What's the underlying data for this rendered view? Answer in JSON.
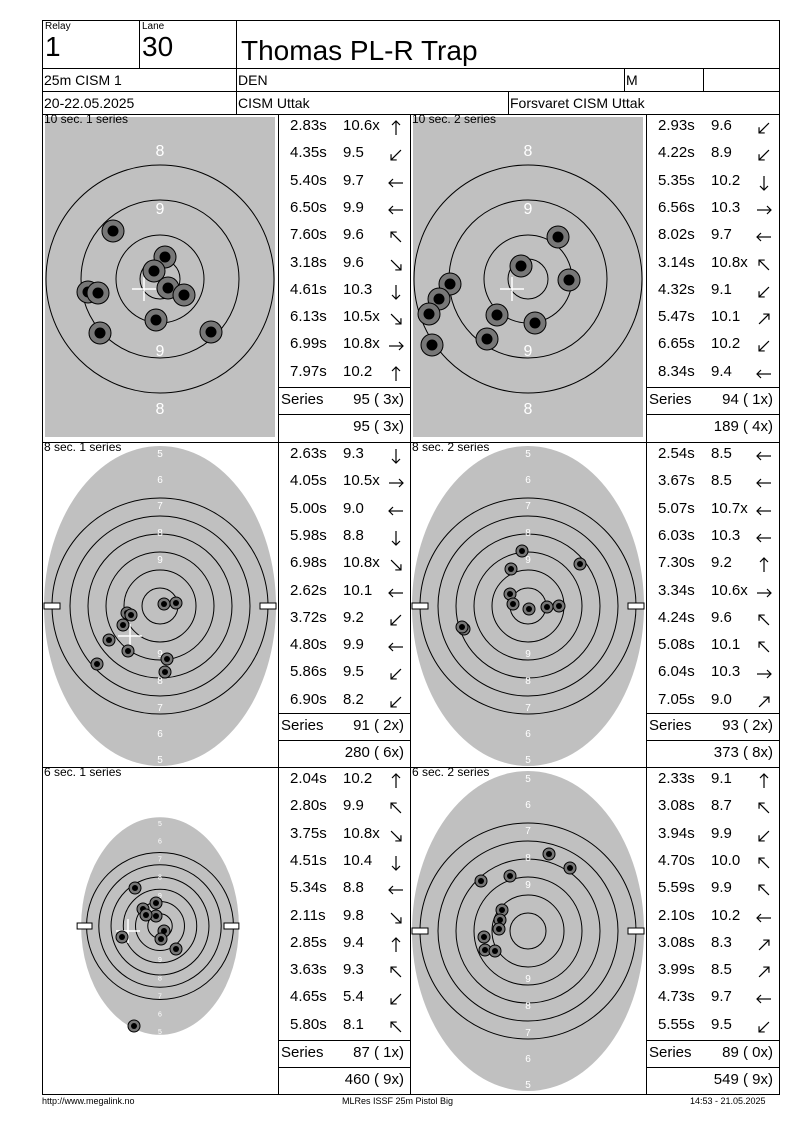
{
  "header": {
    "relay_label": "Relay",
    "relay_value": "1",
    "lane_label": "Lane",
    "lane_value": "30",
    "shooter_name": "Thomas PL-R Trap",
    "event": "25m CISM 1",
    "nation": "DEN",
    "gender": "M",
    "dates": "20-22.05.2025",
    "competition": "CISM Uttak",
    "club": "Forsvaret CISM Uttak"
  },
  "series": [
    {
      "title": "10 sec. 1 series",
      "target_type": "precision",
      "shots": [
        {
          "time": "2.83s",
          "score": "10.6x",
          "dir": "n"
        },
        {
          "time": "4.35s",
          "score": "9.5",
          "dir": "sw"
        },
        {
          "time": "5.40s",
          "score": "9.7",
          "dir": "w"
        },
        {
          "time": "6.50s",
          "score": "9.9",
          "dir": "w"
        },
        {
          "time": "7.60s",
          "score": "9.6",
          "dir": "nw"
        },
        {
          "time": "3.18s",
          "score": "9.6",
          "dir": "se"
        },
        {
          "time": "4.61s",
          "score": "10.3",
          "dir": "s"
        },
        {
          "time": "6.13s",
          "score": "10.5x",
          "dir": "se"
        },
        {
          "time": "6.99s",
          "score": "10.8x",
          "dir": "e"
        },
        {
          "time": "7.97s",
          "score": "10.2",
          "dir": "n"
        }
      ],
      "series_label": "Series",
      "series_total": "95 ( 3x)",
      "running_total": "95 ( 3x)"
    },
    {
      "title": "10 sec. 2 series",
      "target_type": "precision",
      "shots": [
        {
          "time": "2.93s",
          "score": "9.6",
          "dir": "sw"
        },
        {
          "time": "4.22s",
          "score": "8.9",
          "dir": "sw"
        },
        {
          "time": "5.35s",
          "score": "10.2",
          "dir": "s"
        },
        {
          "time": "6.56s",
          "score": "10.3",
          "dir": "e"
        },
        {
          "time": "8.02s",
          "score": "9.7",
          "dir": "w"
        },
        {
          "time": "3.14s",
          "score": "10.8x",
          "dir": "nw"
        },
        {
          "time": "4.32s",
          "score": "9.1",
          "dir": "sw"
        },
        {
          "time": "5.47s",
          "score": "10.1",
          "dir": "ne"
        },
        {
          "time": "6.65s",
          "score": "10.2",
          "dir": "sw"
        },
        {
          "time": "8.34s",
          "score": "9.4",
          "dir": "w"
        }
      ],
      "series_label": "Series",
      "series_total": "94 ( 1x)",
      "running_total": "189 ( 4x)"
    },
    {
      "title": "8 sec. 1 series",
      "target_type": "rapid",
      "shots": [
        {
          "time": "2.63s",
          "score": "9.3",
          "dir": "s"
        },
        {
          "time": "4.05s",
          "score": "10.5x",
          "dir": "e"
        },
        {
          "time": "5.00s",
          "score": "9.0",
          "dir": "w"
        },
        {
          "time": "5.98s",
          "score": "8.8",
          "dir": "s"
        },
        {
          "time": "6.98s",
          "score": "10.8x",
          "dir": "se"
        },
        {
          "time": "2.62s",
          "score": "10.1",
          "dir": "w"
        },
        {
          "time": "3.72s",
          "score": "9.2",
          "dir": "sw"
        },
        {
          "time": "4.80s",
          "score": "9.9",
          "dir": "w"
        },
        {
          "time": "5.86s",
          "score": "9.5",
          "dir": "sw"
        },
        {
          "time": "6.90s",
          "score": "8.2",
          "dir": "sw"
        }
      ],
      "series_label": "Series",
      "series_total": "91 ( 2x)",
      "running_total": "280 ( 6x)"
    },
    {
      "title": "8 sec. 2 series",
      "target_type": "rapid",
      "shots": [
        {
          "time": "2.54s",
          "score": "8.5",
          "dir": "w"
        },
        {
          "time": "3.67s",
          "score": "8.5",
          "dir": "w"
        },
        {
          "time": "5.07s",
          "score": "10.7x",
          "dir": "w"
        },
        {
          "time": "6.03s",
          "score": "10.3",
          "dir": "w"
        },
        {
          "time": "7.30s",
          "score": "9.2",
          "dir": "n"
        },
        {
          "time": "3.34s",
          "score": "10.6x",
          "dir": "e"
        },
        {
          "time": "4.24s",
          "score": "9.6",
          "dir": "nw"
        },
        {
          "time": "5.08s",
          "score": "10.1",
          "dir": "nw"
        },
        {
          "time": "6.04s",
          "score": "10.3",
          "dir": "e"
        },
        {
          "time": "7.05s",
          "score": "9.0",
          "dir": "ne"
        }
      ],
      "series_label": "Series",
      "series_total": "93 ( 2x)",
      "running_total": "373 ( 8x)"
    },
    {
      "title": "6 sec. 1 series",
      "target_type": "rapid_small",
      "shots": [
        {
          "time": "2.04s",
          "score": "10.2",
          "dir": "n"
        },
        {
          "time": "2.80s",
          "score": "9.9",
          "dir": "nw"
        },
        {
          "time": "3.75s",
          "score": "10.8x",
          "dir": "se"
        },
        {
          "time": "4.51s",
          "score": "10.4",
          "dir": "s"
        },
        {
          "time": "5.34s",
          "score": "8.8",
          "dir": "w"
        },
        {
          "time": "2.11s",
          "score": "9.8",
          "dir": "se"
        },
        {
          "time": "2.85s",
          "score": "9.4",
          "dir": "n"
        },
        {
          "time": "3.63s",
          "score": "9.3",
          "dir": "nw"
        },
        {
          "time": "4.65s",
          "score": "5.4",
          "dir": "sw"
        },
        {
          "time": "5.80s",
          "score": "8.1",
          "dir": "nw"
        }
      ],
      "series_label": "Series",
      "series_total": "87 ( 1x)",
      "running_total": "460 ( 9x)"
    },
    {
      "title": "6 sec. 2 series",
      "target_type": "rapid",
      "shots": [
        {
          "time": "2.33s",
          "score": "9.1",
          "dir": "n"
        },
        {
          "time": "3.08s",
          "score": "8.7",
          "dir": "nw"
        },
        {
          "time": "3.94s",
          "score": "9.9",
          "dir": "sw"
        },
        {
          "time": "4.70s",
          "score": "10.0",
          "dir": "nw"
        },
        {
          "time": "5.59s",
          "score": "9.9",
          "dir": "nw"
        },
        {
          "time": "2.10s",
          "score": "10.2",
          "dir": "w"
        },
        {
          "time": "3.08s",
          "score": "8.3",
          "dir": "ne"
        },
        {
          "time": "3.99s",
          "score": "8.5",
          "dir": "ne"
        },
        {
          "time": "4.73s",
          "score": "9.7",
          "dir": "w"
        },
        {
          "time": "5.55s",
          "score": "9.5",
          "dir": "sw"
        }
      ],
      "series_label": "Series",
      "series_total": "89 ( 0x)",
      "running_total": "549 ( 9x)"
    }
  ],
  "ring_labels": {
    "precision": [
      "8",
      "9",
      "9",
      "8"
    ],
    "rapid": [
      "5",
      "6",
      "7",
      "8",
      "9",
      "9",
      "8",
      "7",
      "6",
      "5"
    ]
  },
  "footer": {
    "left": "http://www.megalink.no",
    "center": "MLRes ISSF 25m Pistol Big",
    "right": "14:53 - 21.05.2025"
  },
  "colors": {
    "target_gray": "#c0c0c0",
    "hole": "#777777",
    "ink": "#000000"
  }
}
